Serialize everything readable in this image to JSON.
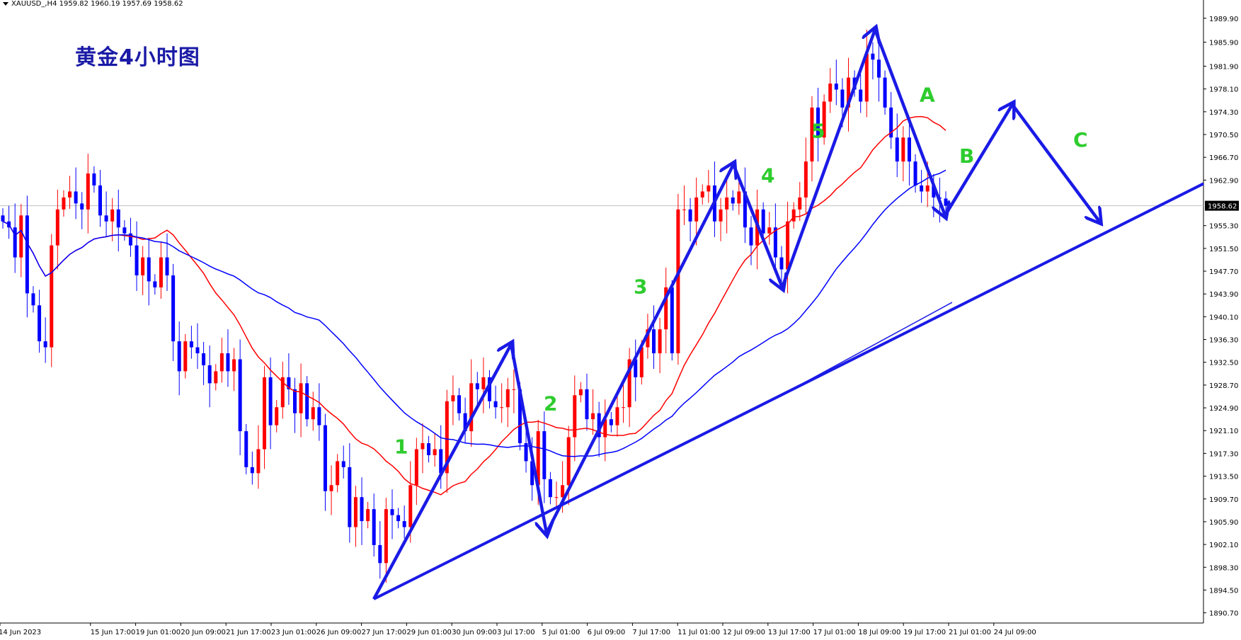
{
  "header": {
    "symbol_info": "XAUUSD_,H4  1959.82 1960.19 1957.69 1958.62"
  },
  "chart_title": "黄金4小时图",
  "chart_data": {
    "type": "candlestick",
    "symbol": "XAUUSD_",
    "timeframe": "H4",
    "ohlc": {
      "open": 1959.82,
      "high": 1960.19,
      "low": 1957.69,
      "close": 1958.62
    },
    "current_price_label": "1958.62",
    "ylim": [
      1889.0,
      1992.0
    ],
    "y_ticks": [
      "1989.90",
      "1985.90",
      "1981.90",
      "1978.10",
      "1974.30",
      "1970.50",
      "1966.70",
      "1962.90",
      "1955.30",
      "1951.50",
      "1947.70",
      "1943.90",
      "1940.10",
      "1936.30",
      "1932.50",
      "1928.70",
      "1924.90",
      "1921.10",
      "1917.30",
      "1913.50",
      "1909.70",
      "1905.90",
      "1902.10",
      "1898.30",
      "1894.50",
      "1890.70"
    ],
    "x_ticks": [
      "14 Jun 2023",
      "15 Jun 17:00",
      "19 Jun 01:00",
      "20 Jun 09:00",
      "21 Jun 17:00",
      "23 Jun 01:00",
      "26 Jun 09:00",
      "27 Jun 17:00",
      "29 Jun 01:00",
      "30 Jun 09:00",
      "3 Jul 17:00",
      "5 Jul 01:00",
      "6 Jul 09:00",
      "7 Jul 17:00",
      "11 Jul 01:00",
      "12 Jul 09:00",
      "13 Jul 17:00",
      "17 Jul 01:00",
      "18 Jul 09:00",
      "19 Jul 17:00",
      "21 Jul 01:00",
      "24 Jul 09:00"
    ],
    "candles_close": [
      1956,
      1955,
      1950,
      1957,
      1944,
      1942,
      1936,
      1935,
      1952,
      1958,
      1960,
      1961,
      1959,
      1958,
      1964,
      1962,
      1957,
      1956,
      1958,
      1955,
      1954,
      1952,
      1947,
      1950,
      1946,
      1945,
      1950,
      1947,
      1936,
      1931,
      1936,
      1935,
      1934,
      1932,
      1929,
      1931,
      1934,
      1931,
      1933,
      1921,
      1915,
      1914,
      1918,
      1930,
      1922,
      1925,
      1930,
      1928,
      1924,
      1929,
      1923,
      1925,
      1922,
      1911,
      1912,
      1916,
      1915,
      1905,
      1910,
      1906,
      1908,
      1902,
      1899,
      1908,
      1907,
      1906,
      1905,
      1912,
      1918,
      1919,
      1917,
      1918,
      1914,
      1926,
      1927,
      1924,
      1921,
      1929,
      1928,
      1930,
      1926,
      1925,
      1925,
      1928,
      1928,
      1919,
      1916,
      1912,
      1921,
      1913,
      1910,
      1910,
      1912,
      1920,
      1927,
      1928,
      1923,
      1924,
      1920,
      1923,
      1922,
      1925,
      1925,
      1933,
      1930,
      1935,
      1938,
      1934,
      1938,
      1945,
      1934,
      1958,
      1958,
      1956,
      1960,
      1961,
      1962,
      1956,
      1958,
      1960,
      1959,
      1961,
      1955,
      1952,
      1958,
      1954,
      1955,
      1950,
      1948,
      1956,
      1958,
      1960,
      1966,
      1975,
      1970,
      1976,
      1979,
      1978,
      1975,
      1980,
      1978,
      1976,
      1984,
      1983,
      1980,
      1975,
      1970,
      1966,
      1970,
      1966,
      1962,
      1961,
      1962,
      1960,
      1959.82,
      1958.62
    ],
    "waves": [
      {
        "label": "1",
        "from": 1893.0,
        "to": 1935.5
      },
      {
        "label": "2",
        "from": 1935.5,
        "to": 1904.0
      },
      {
        "label": "3",
        "from": 1904.0,
        "to": 1965.5
      },
      {
        "label": "4",
        "from": 1965.5,
        "to": 1945.0
      },
      {
        "label": "5",
        "from": 1945.0,
        "to": 1988.0
      },
      {
        "label": "A",
        "from": 1988.0,
        "to": 1957.0
      },
      {
        "label": "B",
        "from": 1957.0,
        "to": 1975.5
      },
      {
        "label": "C",
        "from": 1975.5,
        "to": 1956.0
      }
    ],
    "labels": [
      "1",
      "2",
      "3",
      "4",
      "5",
      "A",
      "B",
      "C"
    ],
    "ma_red_color": "#ff0000",
    "ma_blue_color": "#0000ff",
    "bull_color": "#ff0000",
    "bear_color": "#0000ff",
    "arrow_color": "#1a1ae6",
    "label_color": "#2ecc2e"
  }
}
